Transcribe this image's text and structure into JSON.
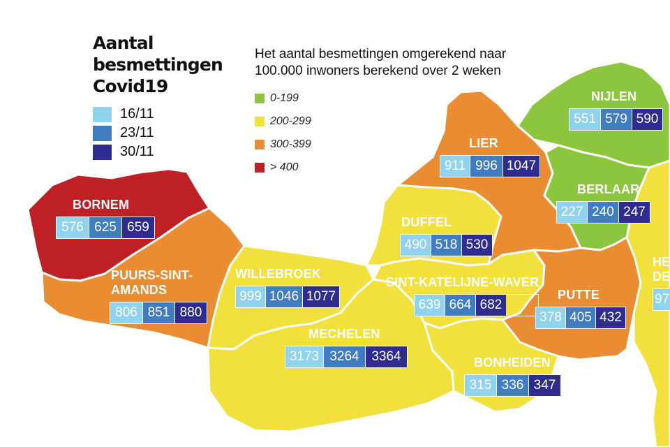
{
  "title": {
    "line1": "Aantal",
    "line2": "besmettingen",
    "line3": "Covid19"
  },
  "date_legend": [
    {
      "label": "16/11",
      "color": "#8fd3ee"
    },
    {
      "label": "23/11",
      "color": "#3f7cc0"
    },
    {
      "label": "30/11",
      "color": "#2e2c8e"
    }
  ],
  "scale": {
    "line1": "Het aantal besmettingen omgerekend naar",
    "line2": "100.000 inwoners berekend over 2 weken",
    "items": [
      {
        "label": "0-199",
        "color": "#8cc63f"
      },
      {
        "label": "200-299",
        "color": "#f2e03c"
      },
      {
        "label": "300-399",
        "color": "#ea8d32"
      },
      {
        "label": "> 400",
        "color": "#be2026"
      }
    ]
  },
  "municipalities": {
    "bornem": {
      "name": "BORNEM",
      "values": [
        "576",
        "625",
        "659"
      ],
      "category": "> 400"
    },
    "puurs": {
      "name_line1": "PUURS-SINT-",
      "name_line2": "AMANDS",
      "values": [
        "806",
        "851",
        "880"
      ],
      "category": "300-399"
    },
    "willebroek": {
      "name": "WILLEBROEK",
      "values": [
        "999",
        "1046",
        "1077"
      ],
      "category": "200-299"
    },
    "mechelen": {
      "name": "MECHELEN",
      "values": [
        "3173",
        "3264",
        "3364"
      ],
      "category": "200-299"
    },
    "duffel": {
      "name": "DUFFEL",
      "values": [
        "490",
        "518",
        "530"
      ],
      "category": "200-299"
    },
    "skw": {
      "name": "SINT-KATELIJNE-WAVER",
      "values": [
        "639",
        "664",
        "682"
      ],
      "category": "200-299"
    },
    "bonheiden": {
      "name": "BONHEIDEN",
      "values": [
        "315",
        "336",
        "347"
      ],
      "category": "200-299"
    },
    "lier": {
      "name": "LIER",
      "values": [
        "911",
        "996",
        "1047"
      ],
      "category": "300-399"
    },
    "nijlen": {
      "name": "NIJLEN",
      "values": [
        "551",
        "579",
        "590"
      ],
      "category": "0-199"
    },
    "berlaar": {
      "name": "BERLAAR",
      "values": [
        "227",
        "240",
        "247"
      ],
      "category": "0-199"
    },
    "putte": {
      "name": "PUTTE",
      "values": [
        "378",
        "405",
        "432"
      ],
      "category": "300-399"
    },
    "heist": {
      "name_line1": "HE",
      "name_line2": "DE",
      "values": [
        "97"
      ],
      "category": "200-299"
    }
  }
}
